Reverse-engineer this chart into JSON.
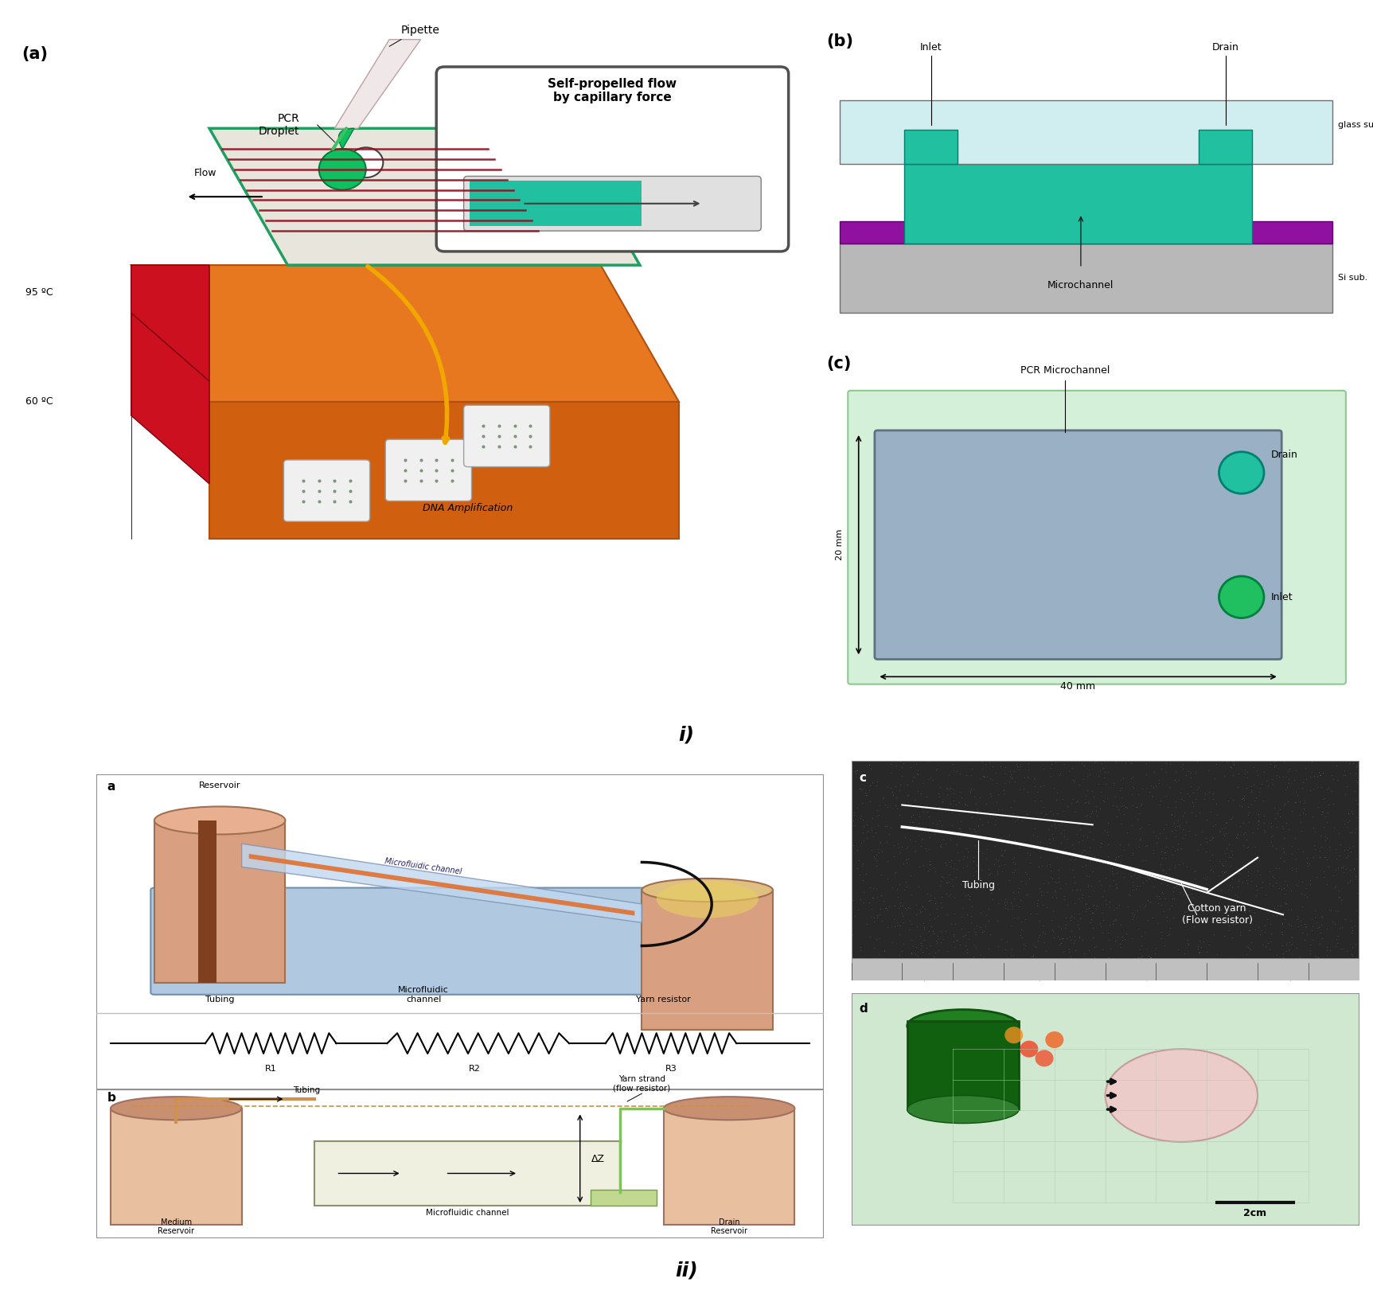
{
  "fig_width": 17.25,
  "fig_height": 16.21,
  "title_i": "i)",
  "title_ii": "ii)",
  "label_a": "(a)",
  "label_b": "(b)",
  "label_c": "(c)",
  "panel_a": {
    "pipette": "Pipette",
    "pcr": "PCR\nDroplet",
    "flow": "Flow",
    "temp1": "95 ºC",
    "temp2": "60 ºC",
    "dna": "DNA Amplification",
    "self_propelled": "Self-propelled flow\nby capillary force"
  },
  "panel_b": {
    "inlet": "Inlet",
    "drain": "Drain",
    "glass_sub": "glass sub.",
    "microchannel": "Microchannel",
    "si_sub": "Si sub."
  },
  "panel_c": {
    "pcr_microchannel": "PCR Microchannel",
    "drain": "Drain",
    "inlet": "Inlet",
    "dim_20": "20 mm",
    "dim_40": "40 mm"
  },
  "panel_ii": {
    "sub_a": "a",
    "sub_b": "b",
    "sub_c": "c",
    "sub_d": "d",
    "reservoir": "Reservoir",
    "microfluidic_channel": "Microfluidic channel",
    "tubing": "Tubing",
    "mf_channel2": "Microfluidic\nchannel",
    "yarn_resistor": "Yarn resistor",
    "r1": "R1",
    "r2": "R2",
    "r3": "R3",
    "medium_reservoir": "Medium\nReservoir",
    "mf_channel3": "Microfluidic channel",
    "drain_reservoir": "Drain\nReservoir",
    "tubing2": "Tubing",
    "yarn_strand": "Yarn strand\n(flow resistor)",
    "delta_z": "ΔZ",
    "tubing3": "Tubing",
    "cotton_yarn": "Cotton yarn\n(Flow resistor)",
    "scale_bar": "2cm"
  }
}
